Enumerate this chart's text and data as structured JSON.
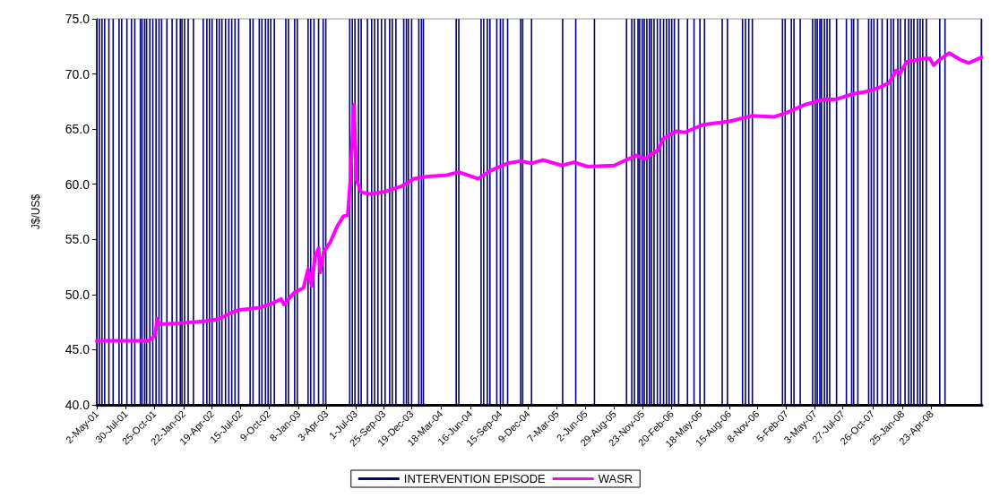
{
  "chart_data": {
    "type": "line",
    "ylabel": "J$/US$",
    "legend": "bottom",
    "grid": false,
    "marker": "none",
    "line_style": "solid",
    "xlim": [
      "2001-05-02",
      "2008-09-24"
    ],
    "xticks": [
      {
        "value": "2001-05-02",
        "label": "2-May-01"
      },
      {
        "value": "2001-07-30",
        "label": "30-Jul-01"
      },
      {
        "value": "2001-10-25",
        "label": "25-Oct-01"
      },
      {
        "value": "2002-01-22",
        "label": "22-Jan-02"
      },
      {
        "value": "2002-04-19",
        "label": "19-Apr-02"
      },
      {
        "value": "2002-07-15",
        "label": "15-Jul-02"
      },
      {
        "value": "2002-10-09",
        "label": "9-Oct-02"
      },
      {
        "value": "2003-01-08",
        "label": "8-Jan-03"
      },
      {
        "value": "2003-04-03",
        "label": "3-Apr-03"
      },
      {
        "value": "2003-07-01",
        "label": "1-Jul-03"
      },
      {
        "value": "2003-09-25",
        "label": "25-Sep-03"
      },
      {
        "value": "2003-12-19",
        "label": "19-Dec-03"
      },
      {
        "value": "2004-03-18",
        "label": "18-Mar-04"
      },
      {
        "value": "2004-06-16",
        "label": "16-Jun-04"
      },
      {
        "value": "2004-09-15",
        "label": "15-Sep-04"
      },
      {
        "value": "2004-12-09",
        "label": "9-Dec-04"
      },
      {
        "value": "2005-03-07",
        "label": "7-Mar-05"
      },
      {
        "value": "2005-06-02",
        "label": "2-Jun-05"
      },
      {
        "value": "2005-08-29",
        "label": "29-Aug-05"
      },
      {
        "value": "2005-11-23",
        "label": "23-Nov-05"
      },
      {
        "value": "2006-02-20",
        "label": "20-Feb-06"
      },
      {
        "value": "2006-05-18",
        "label": "18-May-06"
      },
      {
        "value": "2006-08-15",
        "label": "15-Aug-06"
      },
      {
        "value": "2006-11-08",
        "label": "8-Nov-06"
      },
      {
        "value": "2007-02-05",
        "label": "5-Feb-07"
      },
      {
        "value": "2007-05-03",
        "label": "3-May-07"
      },
      {
        "value": "2007-07-27",
        "label": "27-Jul-07"
      },
      {
        "value": "2007-10-26",
        "label": "26-Oct-07"
      },
      {
        "value": "2008-01-25",
        "label": "25-Jan-08"
      },
      {
        "value": "2008-04-23",
        "label": "23-Apr-08"
      }
    ],
    "ylim": [
      40,
      75
    ],
    "yticks": [
      {
        "value": 40,
        "label": "40.0"
      },
      {
        "value": 45,
        "label": "45.0"
      },
      {
        "value": 50,
        "label": "50.0"
      },
      {
        "value": 55,
        "label": "55.0"
      },
      {
        "value": 60,
        "label": "60.0"
      },
      {
        "value": 65,
        "label": "65.0"
      },
      {
        "value": 70,
        "label": "70.0"
      },
      {
        "value": 75,
        "label": "75.0"
      }
    ],
    "series": [
      {
        "name": "INTERVENTION EPISODE",
        "type": "bar",
        "color": "#000080",
        "x": [
          "2001-05-02",
          "2001-05-10",
          "2001-05-18",
          "2001-05-26",
          "2001-06-08",
          "2001-06-21",
          "2001-07-09",
          "2001-07-17",
          "2001-08-02",
          "2001-08-16",
          "2001-08-26",
          "2001-09-12",
          "2001-09-17",
          "2001-09-25",
          "2001-10-01",
          "2001-10-11",
          "2001-10-20",
          "2001-10-30",
          "2001-11-08",
          "2001-11-16",
          "2001-12-02",
          "2001-12-18",
          "2002-01-01",
          "2002-01-12",
          "2002-01-17",
          "2002-01-25",
          "2002-02-05",
          "2002-02-21",
          "2002-03-23",
          "2002-04-03",
          "2002-04-11",
          "2002-04-19",
          "2002-05-03",
          "2002-05-11",
          "2002-05-19",
          "2002-05-30",
          "2002-06-09",
          "2002-06-18",
          "2002-06-28",
          "2002-07-09",
          "2002-08-13",
          "2002-08-22",
          "2002-09-10",
          "2002-09-18",
          "2002-09-29",
          "2002-10-07",
          "2002-10-15",
          "2002-10-26",
          "2002-11-30",
          "2002-12-08",
          "2002-12-27",
          "2003-01-04",
          "2003-02-06",
          "2003-02-14",
          "2003-02-24",
          "2003-03-10",
          "2003-03-24",
          "2003-04-01",
          "2003-06-13",
          "2003-06-21",
          "2003-06-29",
          "2003-07-10",
          "2003-07-18",
          "2003-08-06",
          "2003-08-19",
          "2003-08-28",
          "2003-09-07",
          "2003-09-18",
          "2003-09-29",
          "2003-10-13",
          "2003-10-21",
          "2003-11-01",
          "2003-11-25",
          "2003-12-03",
          "2003-12-09",
          "2003-12-19",
          "2004-01-10",
          "2004-01-18",
          "2004-01-24",
          "2004-05-03",
          "2004-05-11",
          "2004-07-18",
          "2004-07-26",
          "2004-08-06",
          "2004-08-14",
          "2004-09-04",
          "2004-09-15",
          "2004-09-23",
          "2004-10-07",
          "2004-11-16",
          "2004-11-22",
          "2004-12-19",
          "2005-03-24",
          "2005-05-03",
          "2005-06-29",
          "2005-10-05",
          "2005-10-21",
          "2005-10-29",
          "2005-11-09",
          "2005-11-14",
          "2005-11-22",
          "2005-11-28",
          "2005-12-06",
          "2005-12-14",
          "2005-12-20",
          "2005-12-28",
          "2006-01-07",
          "2006-01-16",
          "2006-01-26",
          "2006-02-04",
          "2006-02-12",
          "2006-02-20",
          "2006-02-28",
          "2006-03-13",
          "2006-04-09",
          "2006-04-29",
          "2006-05-17",
          "2006-05-31",
          "2006-07-24",
          "2006-08-09",
          "2006-09-24",
          "2006-10-03",
          "2006-10-13",
          "2006-10-24",
          "2007-01-24",
          "2007-02-01",
          "2007-02-20",
          "2007-02-28",
          "2007-03-19",
          "2007-04-26",
          "2007-05-04",
          "2007-05-10",
          "2007-05-18",
          "2007-05-23",
          "2007-06-01",
          "2007-06-09",
          "2007-06-17",
          "2007-07-08",
          "2007-08-07",
          "2007-08-23",
          "2007-08-29",
          "2007-09-11",
          "2007-10-14",
          "2007-10-22",
          "2007-10-30",
          "2007-11-10",
          "2007-11-24",
          "2007-12-10",
          "2007-12-21",
          "2007-12-29",
          "2008-01-11",
          "2008-01-19",
          "2008-02-02",
          "2008-02-13",
          "2008-02-21",
          "2008-02-29",
          "2008-03-11",
          "2008-03-19",
          "2008-03-27",
          "2008-04-07",
          "2008-05-18",
          "2008-06-03",
          "2008-09-22"
        ],
        "values": [
          75,
          75,
          75,
          75,
          75,
          75,
          75,
          75,
          75,
          75,
          75,
          75,
          75,
          75,
          75,
          75,
          75,
          75,
          75,
          75,
          75,
          75,
          75,
          75,
          75,
          75,
          75,
          75,
          75,
          75,
          75,
          75,
          75,
          75,
          75,
          75,
          75,
          75,
          75,
          75,
          75,
          75,
          75,
          75,
          75,
          75,
          75,
          75,
          75,
          75,
          75,
          75,
          75,
          75,
          75,
          75,
          75,
          75,
          75,
          75,
          75,
          75,
          75,
          75,
          75,
          75,
          75,
          75,
          75,
          75,
          75,
          75,
          75,
          75,
          75,
          75,
          75,
          75,
          75,
          75,
          75,
          75,
          75,
          75,
          75,
          75,
          75,
          75,
          75,
          75,
          75,
          75,
          75,
          75,
          75,
          75,
          75,
          75,
          75,
          75,
          75,
          75,
          75,
          75,
          75,
          75,
          75,
          75,
          75,
          75,
          75,
          75,
          75,
          75,
          75,
          75,
          75,
          75,
          75,
          75,
          75,
          75,
          75,
          75,
          75,
          75,
          75,
          75,
          75,
          75,
          75,
          75,
          75,
          75,
          75,
          75,
          75,
          75,
          75,
          75,
          75,
          75,
          75,
          75,
          75,
          75,
          75,
          75,
          75,
          75,
          75,
          75,
          75,
          75,
          75,
          75,
          75,
          75,
          75,
          75,
          75,
          75,
          75
        ]
      },
      {
        "name": "WASR",
        "color": "#ff00ff",
        "x": [
          "2001-05-02",
          "2001-10-06",
          "2001-10-20",
          "2001-10-28",
          "2001-11-02",
          "2001-11-10",
          "2002-01-09",
          "2002-03-31",
          "2002-05-11",
          "2002-06-07",
          "2002-06-28",
          "2002-07-12",
          "2002-09-10",
          "2002-10-20",
          "2002-11-16",
          "2002-11-24",
          "2002-12-27",
          "2003-01-23",
          "2003-02-06",
          "2003-02-17",
          "2003-02-27",
          "2003-03-10",
          "2003-03-15",
          "2003-03-26",
          "2003-04-14",
          "2003-05-06",
          "2003-05-25",
          "2003-06-07",
          "2003-06-15",
          "2003-06-26",
          "2003-07-04",
          "2003-07-18",
          "2003-08-14",
          "2003-09-24",
          "2003-11-17",
          "2003-12-27",
          "2004-02-06",
          "2004-03-31",
          "2004-05-11",
          "2004-06-20",
          "2004-07-09",
          "2004-08-14",
          "2004-10-07",
          "2004-11-16",
          "2004-12-19",
          "2005-01-23",
          "2005-03-22",
          "2005-04-28",
          "2005-06-08",
          "2005-08-28",
          "2005-11-03",
          "2005-11-30",
          "2006-01-10",
          "2006-01-24",
          "2006-03-05",
          "2006-04-01",
          "2006-05-26",
          "2006-08-15",
          "2006-10-22",
          "2006-12-28",
          "2007-02-07",
          "2007-04-01",
          "2007-06-01",
          "2007-07-06",
          "2007-08-29",
          "2007-10-08",
          "2007-11-18",
          "2007-12-15",
          "2008-01-06",
          "2008-01-17",
          "2008-02-07",
          "2008-04-02",
          "2008-04-18",
          "2008-04-29",
          "2008-05-18",
          "2008-06-16",
          "2008-07-19",
          "2008-08-15",
          "2008-09-22"
        ],
        "values": [
          45.8,
          45.8,
          46.1,
          46.4,
          47.8,
          47.3,
          47.4,
          47.6,
          47.8,
          48.2,
          48.5,
          48.6,
          48.8,
          49.2,
          49.6,
          49.1,
          50.2,
          50.6,
          52.3,
          50.8,
          53.4,
          54.2,
          52.0,
          53.9,
          54.7,
          56.2,
          57.1,
          57.2,
          60.4,
          67.2,
          60.4,
          59.3,
          59.1,
          59.3,
          59.8,
          60.5,
          60.7,
          60.8,
          61.1,
          60.7,
          60.5,
          61.2,
          61.9,
          62.1,
          61.9,
          62.2,
          61.7,
          62.0,
          61.6,
          61.7,
          62.6,
          62.3,
          63.1,
          64.1,
          64.8,
          64.7,
          65.4,
          65.7,
          66.2,
          66.1,
          66.5,
          67.2,
          67.7,
          67.7,
          68.2,
          68.4,
          68.8,
          69.2,
          70.3,
          70.0,
          71.1,
          71.4,
          71.4,
          70.8,
          71.3,
          71.9,
          71.3,
          71.0,
          71.5
        ]
      }
    ]
  }
}
